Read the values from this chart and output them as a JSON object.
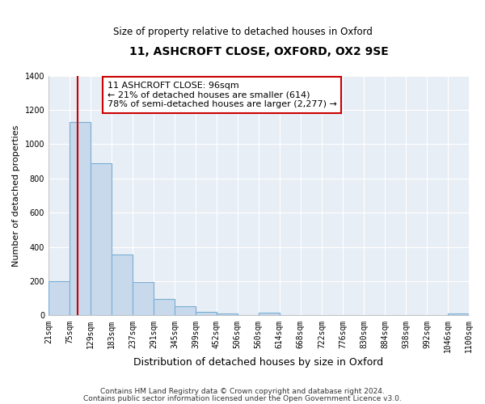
{
  "title": "11, ASHCROFT CLOSE, OXFORD, OX2 9SE",
  "subtitle": "Size of property relative to detached houses in Oxford",
  "xlabel": "Distribution of detached houses by size in Oxford",
  "ylabel": "Number of detached properties",
  "bar_edges": [
    21,
    75,
    129,
    183,
    237,
    291,
    345,
    399,
    452,
    506,
    560,
    614,
    668,
    722,
    776,
    830,
    884,
    938,
    992,
    1046,
    1100
  ],
  "bar_heights": [
    200,
    1130,
    890,
    355,
    195,
    95,
    55,
    20,
    10,
    0,
    15,
    0,
    0,
    0,
    0,
    0,
    0,
    0,
    0,
    10
  ],
  "bar_color": "#c8d9ec",
  "bar_edge_color": "#7aaed4",
  "property_line_x": 96,
  "property_line_color": "#cc0000",
  "annotation_line1": "11 ASHCROFT CLOSE: 96sqm",
  "annotation_line2": "← 21% of detached houses are smaller (614)",
  "annotation_line3": "78% of semi-detached houses are larger (2,277) →",
  "annotation_box_color": "#cc0000",
  "annotation_bg": "#ffffff",
  "ylim": [
    0,
    1400
  ],
  "tick_labels": [
    "21sqm",
    "75sqm",
    "129sqm",
    "183sqm",
    "237sqm",
    "291sqm",
    "345sqm",
    "399sqm",
    "452sqm",
    "506sqm",
    "560sqm",
    "614sqm",
    "668sqm",
    "722sqm",
    "776sqm",
    "830sqm",
    "884sqm",
    "938sqm",
    "992sqm",
    "1046sqm",
    "1100sqm"
  ],
  "footer_line1": "Contains HM Land Registry data © Crown copyright and database right 2024.",
  "footer_line2": "Contains public sector information licensed under the Open Government Licence v3.0.",
  "background_color": "#ffffff",
  "plot_bg_color": "#e8eef5",
  "grid_color": "#ffffff"
}
